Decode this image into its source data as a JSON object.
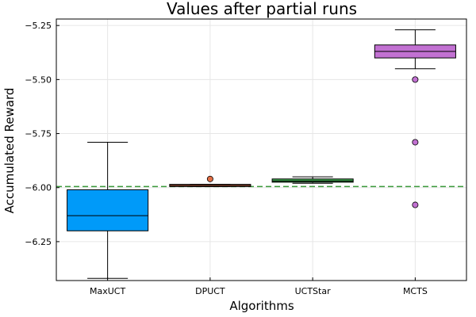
{
  "chart_data": {
    "type": "box",
    "title": "Values after partial runs",
    "xlabel": "Algorithms",
    "ylabel": "Accumulated Reward",
    "ylim": [
      -6.43,
      -5.22
    ],
    "yticks": [
      -6.25,
      -6.0,
      -5.75,
      -5.5,
      -5.25
    ],
    "ytick_labels": [
      "−6.25",
      "−6.00",
      "−5.75",
      "−5.50",
      "−5.25"
    ],
    "grid": true,
    "legend": "none",
    "reference_line": {
      "y": -5.995,
      "color": "#3b9a3b",
      "style": "dashed"
    },
    "categories": [
      "MaxUCT",
      "DPUCT",
      "UCTStar",
      "MCTS"
    ],
    "boxes": [
      {
        "category": "MaxUCT",
        "whisker_low": -6.42,
        "q1": -6.2,
        "median": -6.13,
        "q3": -6.01,
        "whisker_high": -5.79,
        "outliers": [],
        "color": "#009af9"
      },
      {
        "category": "DPUCT",
        "whisker_low": -5.995,
        "q1": -5.995,
        "median": -5.99,
        "q3": -5.985,
        "whisker_high": -5.985,
        "outliers": [
          -5.96
        ],
        "color": "#e26f46"
      },
      {
        "category": "UCTStar",
        "whisker_low": -5.98,
        "q1": -5.975,
        "median": -5.97,
        "q3": -5.96,
        "whisker_high": -5.95,
        "outliers": [],
        "color": "#3da44d"
      },
      {
        "category": "MCTS",
        "whisker_low": -5.45,
        "q1": -5.4,
        "median": -5.37,
        "q3": -5.34,
        "whisker_high": -5.27,
        "outliers": [
          -5.5,
          -5.79,
          -6.08
        ],
        "color": "#c271d2"
      }
    ]
  }
}
